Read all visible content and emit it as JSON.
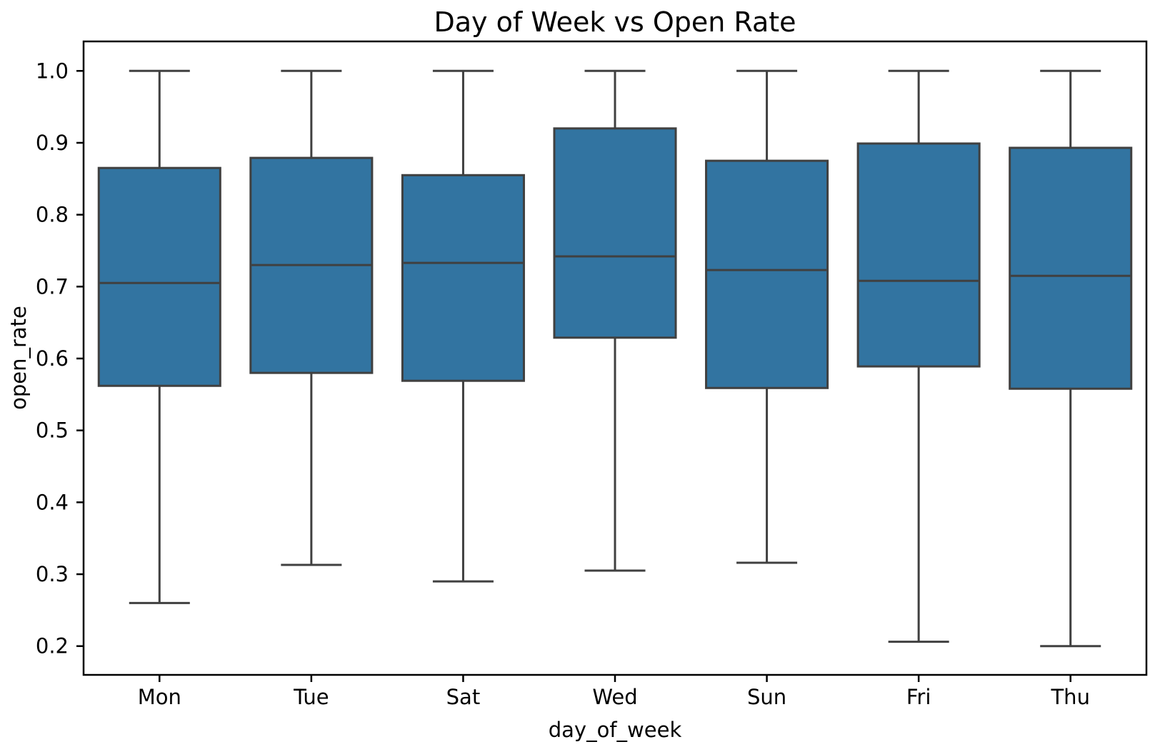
{
  "figure": {
    "title": "Day of Week vs Open Rate"
  },
  "chart_data": {
    "type": "boxplot",
    "title": "Day of Week vs Open Rate",
    "xlabel": "day_of_week",
    "ylabel": "open_rate",
    "categories": [
      "Mon",
      "Tue",
      "Sat",
      "Wed",
      "Sun",
      "Fri",
      "Thu"
    ],
    "series": [
      {
        "name": "Mon",
        "whisker_low": 0.26,
        "q1": 0.562,
        "median": 0.705,
        "q3": 0.865,
        "whisker_high": 1.0
      },
      {
        "name": "Tue",
        "whisker_low": 0.313,
        "q1": 0.58,
        "median": 0.73,
        "q3": 0.879,
        "whisker_high": 1.0
      },
      {
        "name": "Sat",
        "whisker_low": 0.29,
        "q1": 0.569,
        "median": 0.733,
        "q3": 0.855,
        "whisker_high": 1.0
      },
      {
        "name": "Wed",
        "whisker_low": 0.305,
        "q1": 0.629,
        "median": 0.742,
        "q3": 0.92,
        "whisker_high": 1.0
      },
      {
        "name": "Sun",
        "whisker_low": 0.316,
        "q1": 0.559,
        "median": 0.723,
        "q3": 0.875,
        "whisker_high": 1.0
      },
      {
        "name": "Fri",
        "whisker_low": 0.206,
        "q1": 0.589,
        "median": 0.708,
        "q3": 0.899,
        "whisker_high": 1.0
      },
      {
        "name": "Thu",
        "whisker_low": 0.2,
        "q1": 0.558,
        "median": 0.715,
        "q3": 0.893,
        "whisker_high": 1.0
      }
    ],
    "yticks": [
      1.0,
      0.9,
      0.8,
      0.7,
      0.6,
      0.5,
      0.4,
      0.3,
      0.2
    ],
    "ytick_labels": [
      "1.0",
      "0.9",
      "0.8",
      "0.7",
      "0.6",
      "0.5",
      "0.4",
      "0.3",
      "0.2"
    ],
    "ylim": [
      0.16,
      1.041
    ],
    "grid": false,
    "legend": null,
    "colors": {
      "box_fill": "#3274a1",
      "box_edge": "#404040",
      "whisker": "#404040",
      "median": "#404040",
      "spine": "#000000",
      "text": "#000000",
      "background": "#ffffff"
    }
  }
}
